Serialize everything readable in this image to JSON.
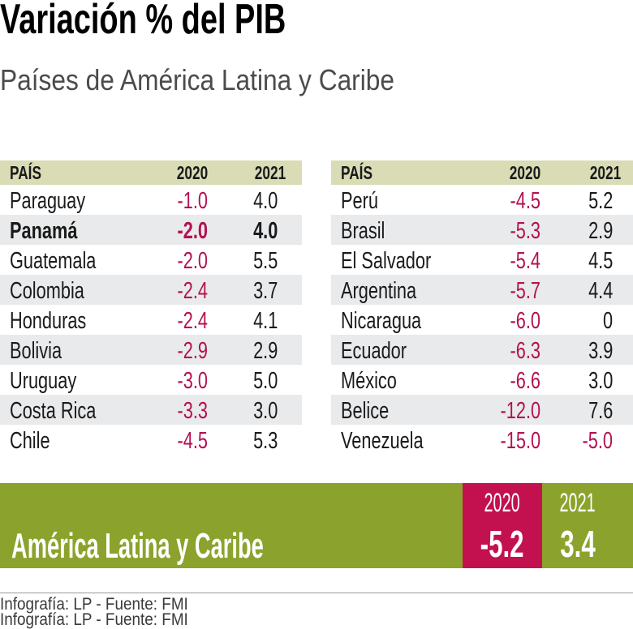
{
  "title": "Variación % del PIB",
  "subtitle": "Países de América Latina y Caribe",
  "colors": {
    "crimson": "#b41150",
    "crimson_band": "#c31150",
    "green": "#8ba32c",
    "khaki": "#d9dcb4",
    "row_alt": "#e9eaeb"
  },
  "tables": {
    "headers": {
      "country": "PAÍS",
      "y2020": "2020",
      "y2021": "2021"
    },
    "left_rows": [
      {
        "country": "Paraguay",
        "y2020": "-1.0",
        "y2021": "4.0",
        "highlight": false
      },
      {
        "country": "Panamá",
        "y2020": "-2.0",
        "y2021": "4.0",
        "highlight": true
      },
      {
        "country": "Guatemala",
        "y2020": "-2.0",
        "y2021": "5.5",
        "highlight": false
      },
      {
        "country": "Colombia",
        "y2020": "-2.4",
        "y2021": "3.7",
        "highlight": false
      },
      {
        "country": "Honduras",
        "y2020": "-2.4",
        "y2021": "4.1",
        "highlight": false
      },
      {
        "country": "Bolivia",
        "y2020": "-2.9",
        "y2021": "2.9",
        "highlight": false
      },
      {
        "country": "Uruguay",
        "y2020": "-3.0",
        "y2021": "5.0",
        "highlight": false
      },
      {
        "country": "Costa Rica",
        "y2020": "-3.3",
        "y2021": "3.0",
        "highlight": false
      },
      {
        "country": "Chile",
        "y2020": "-4.5",
        "y2021": "5.3",
        "highlight": false
      }
    ],
    "right_rows": [
      {
        "country": "Perú",
        "y2020": "-4.5",
        "y2021": "5.2",
        "highlight": false
      },
      {
        "country": "Brasil",
        "y2020": "-5.3",
        "y2021": "2.9",
        "highlight": false
      },
      {
        "country": "El Salvador",
        "y2020": "-5.4",
        "y2021": "4.5",
        "highlight": false
      },
      {
        "country": "Argentina",
        "y2020": "-5.7",
        "y2021": "4.4",
        "highlight": false
      },
      {
        "country": "Nicaragua",
        "y2020": "-6.0",
        "y2021": "0",
        "highlight": false
      },
      {
        "country": "Ecuador",
        "y2020": "-6.3",
        "y2021": "3.9",
        "highlight": false
      },
      {
        "country": "México",
        "y2020": "-6.6",
        "y2021": "3.0",
        "highlight": false
      },
      {
        "country": "Belice",
        "y2020": "-12.0",
        "y2021": "7.6",
        "highlight": false
      },
      {
        "country": "Venezuela",
        "y2020": "-15.0",
        "y2021": "-5.0",
        "highlight": false
      }
    ]
  },
  "summary": {
    "label": "América Latina y Caribe",
    "y2020_header": "2020",
    "y2020_value": "-5.2",
    "y2021_header": "2021",
    "y2021_value": "3.4"
  },
  "footer": {
    "credit": "Infografía: LP - Fuente: FMI"
  },
  "chart_data": {
    "type": "table",
    "title": "Variación % del PIB",
    "subtitle": "Países de América Latina y Caribe",
    "columns": [
      "PAÍS",
      "2020",
      "2021"
    ],
    "rows": [
      [
        "Paraguay",
        -1.0,
        4.0
      ],
      [
        "Panamá",
        -2.0,
        4.0
      ],
      [
        "Guatemala",
        -2.0,
        5.5
      ],
      [
        "Colombia",
        -2.4,
        3.7
      ],
      [
        "Honduras",
        -2.4,
        4.1
      ],
      [
        "Bolivia",
        -2.9,
        2.9
      ],
      [
        "Uruguay",
        -3.0,
        5.0
      ],
      [
        "Costa Rica",
        -3.3,
        3.0
      ],
      [
        "Chile",
        -4.5,
        5.3
      ],
      [
        "Perú",
        -4.5,
        5.2
      ],
      [
        "Brasil",
        -5.3,
        2.9
      ],
      [
        "El Salvador",
        -5.4,
        4.5
      ],
      [
        "Argentina",
        -5.7,
        4.4
      ],
      [
        "Nicaragua",
        -6.0,
        0
      ],
      [
        "Ecuador",
        -6.3,
        3.9
      ],
      [
        "México",
        -6.6,
        3.0
      ],
      [
        "Belice",
        -12.0,
        7.6
      ],
      [
        "Venezuela",
        -15.0,
        -5.0
      ]
    ],
    "summary_row": [
      "América Latina y Caribe",
      -5.2,
      3.4
    ],
    "source": "Infografía: LP - Fuente: FMI",
    "highlighted_row": "Panamá"
  }
}
